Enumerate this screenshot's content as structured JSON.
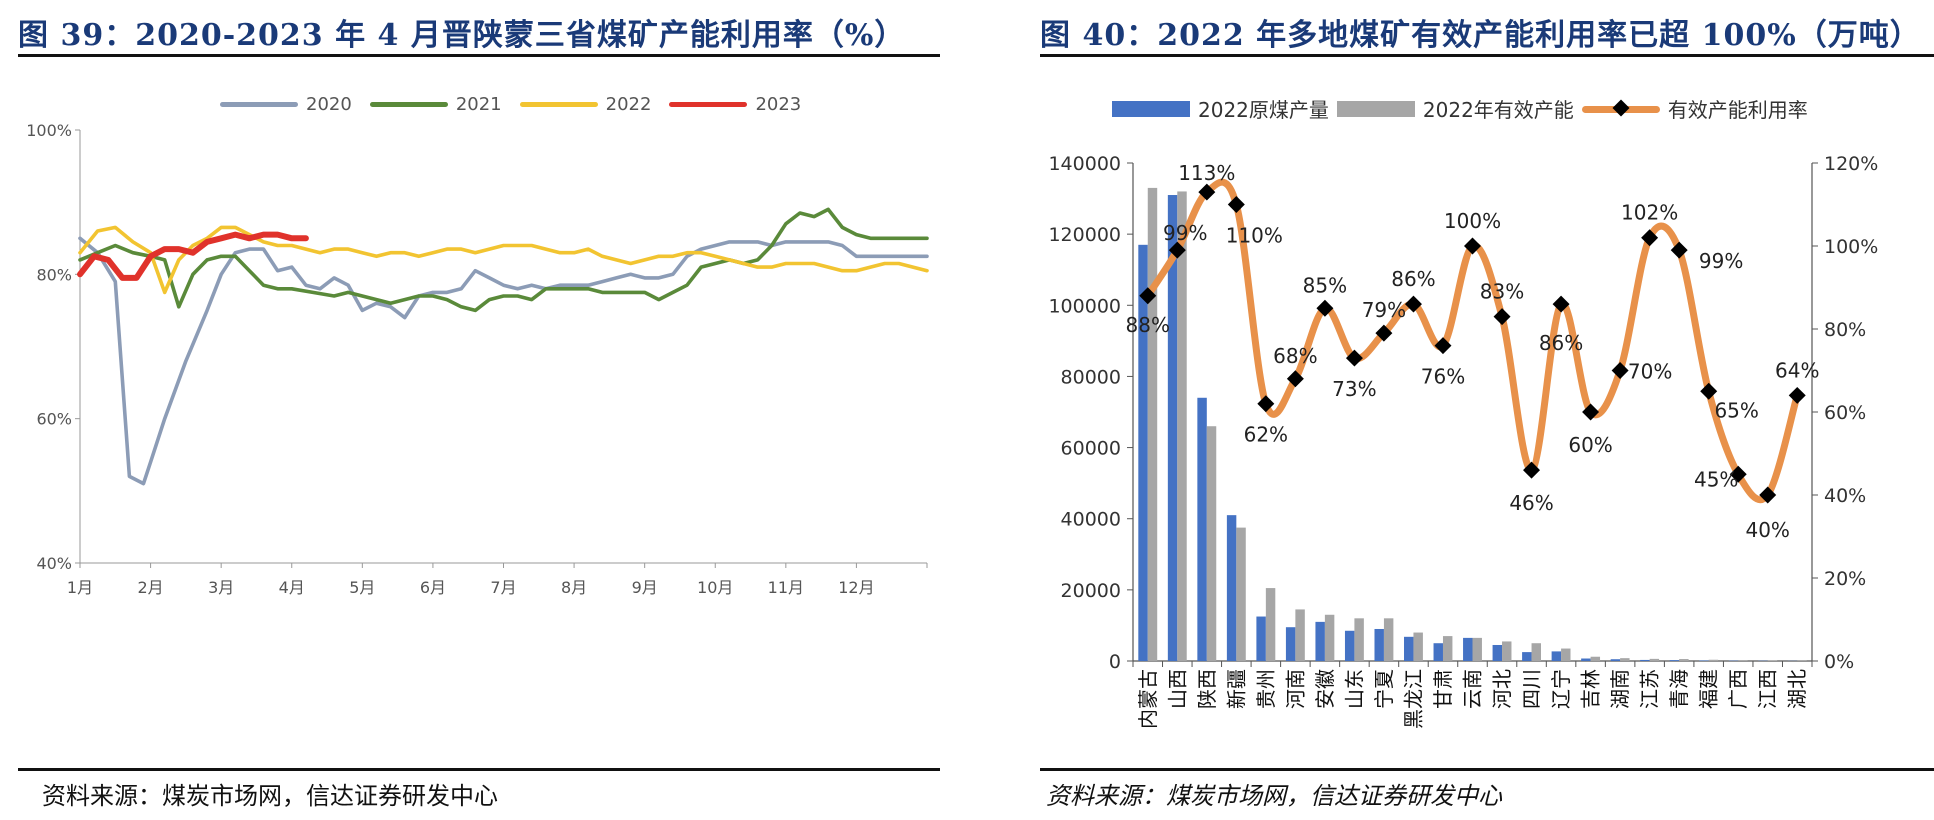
{
  "left": {
    "title": "图 39：2020-2023 年 4 月晋陕蒙三省煤矿产能利用率（%）",
    "source": "资料来源：煤炭市场网，信达证券研发中心"
  },
  "right": {
    "title": "图 40：2022 年多地煤矿有效产能利用率已超 100%（万吨）",
    "source": "资料来源：煤炭市场网，信达证券研发中心"
  },
  "chart_data": [
    {
      "type": "line",
      "title": "2020-2023 年 4 月晋陕蒙三省煤矿产能利用率（%）",
      "x_ticks": [
        "1月",
        "2月",
        "3月",
        "4月",
        "5月",
        "6月",
        "7月",
        "8月",
        "9月",
        "10月",
        "11月",
        "12月"
      ],
      "x_range": [
        1,
        13
      ],
      "y_ticks": [
        "40%",
        "60%",
        "80%",
        "100%"
      ],
      "ylim": [
        40,
        100
      ],
      "legend_position": "top-center",
      "series": [
        {
          "name": "2020",
          "color": "#8c9cb6",
          "x": [
            1,
            1.25,
            1.5,
            1.7,
            1.9,
            2.0,
            2.2,
            2.5,
            2.8,
            3.0,
            3.2,
            3.4,
            3.6,
            3.8,
            4.0,
            4.2,
            4.4,
            4.6,
            4.8,
            5.0,
            5.2,
            5.4,
            5.6,
            5.8,
            6.0,
            6.2,
            6.4,
            6.6,
            6.8,
            7.0,
            7.2,
            7.4,
            7.6,
            7.8,
            8.0,
            8.2,
            8.4,
            8.6,
            8.8,
            9.0,
            9.2,
            9.4,
            9.6,
            9.8,
            10.0,
            10.2,
            10.4,
            10.6,
            10.8,
            11.0,
            11.2,
            11.4,
            11.6,
            11.8,
            12.0,
            12.2,
            12.4,
            12.6,
            12.8,
            13.0
          ],
          "y": [
            85,
            83,
            79,
            52,
            51,
            54,
            60,
            68,
            75,
            80,
            83,
            83.5,
            83.5,
            80.5,
            81,
            78.5,
            78,
            79.5,
            78.5,
            75,
            76,
            75.5,
            74,
            77,
            77.5,
            77.5,
            78,
            80.5,
            79.5,
            78.5,
            78,
            78.5,
            78,
            78.5,
            78.5,
            78.5,
            79,
            79.5,
            80,
            79.5,
            79.5,
            80,
            82.5,
            83.5,
            84,
            84.5,
            84.5,
            84.5,
            84,
            84.5,
            84.5,
            84.5,
            84.5,
            84,
            82.5,
            82.5,
            82.5,
            82.5,
            82.5,
            82.5
          ]
        },
        {
          "name": "2021",
          "color": "#5a8a3a",
          "x": [
            1,
            1.25,
            1.5,
            1.75,
            2.0,
            2.2,
            2.4,
            2.6,
            2.8,
            3.0,
            3.2,
            3.4,
            3.6,
            3.8,
            4.0,
            4.3,
            4.6,
            4.8,
            5.0,
            5.2,
            5.4,
            5.6,
            5.8,
            6.0,
            6.2,
            6.4,
            6.6,
            6.8,
            7.0,
            7.2,
            7.4,
            7.6,
            7.8,
            8.0,
            8.2,
            8.4,
            8.6,
            8.8,
            9.0,
            9.2,
            9.4,
            9.6,
            9.8,
            10.0,
            10.2,
            10.4,
            10.6,
            10.8,
            11.0,
            11.2,
            11.4,
            11.6,
            11.8,
            12.0,
            12.2,
            12.4,
            12.6,
            12.8,
            13.0
          ],
          "y": [
            82,
            83,
            84,
            83,
            82.5,
            82,
            75.5,
            80,
            82,
            82.5,
            82.5,
            80.5,
            78.5,
            78,
            78,
            77.5,
            77,
            77.5,
            77,
            76.5,
            76,
            76.5,
            77,
            77,
            76.5,
            75.5,
            75,
            76.5,
            77,
            77,
            76.5,
            78,
            78,
            78,
            78,
            77.5,
            77.5,
            77.5,
            77.5,
            76.5,
            77.5,
            78.5,
            81,
            81.5,
            82,
            81.5,
            82,
            84,
            87,
            88.5,
            88,
            89,
            86.5,
            85.5,
            85,
            85,
            85,
            85,
            85
          ]
        },
        {
          "name": "2022",
          "color": "#f2c431",
          "x": [
            1,
            1.25,
            1.5,
            1.75,
            2.0,
            2.2,
            2.4,
            2.6,
            2.8,
            3.0,
            3.2,
            3.4,
            3.6,
            3.8,
            4.0,
            4.2,
            4.4,
            4.6,
            4.8,
            5.0,
            5.2,
            5.4,
            5.6,
            5.8,
            6.0,
            6.2,
            6.4,
            6.6,
            6.8,
            7.0,
            7.2,
            7.4,
            7.6,
            7.8,
            8.0,
            8.2,
            8.4,
            8.6,
            8.8,
            9.0,
            9.2,
            9.4,
            9.6,
            9.8,
            10.0,
            10.2,
            10.4,
            10.6,
            10.8,
            11.0,
            11.2,
            11.4,
            11.6,
            11.8,
            12.0,
            12.2,
            12.4,
            12.6,
            12.8,
            13.0
          ],
          "y": [
            83,
            86,
            86.5,
            84.5,
            83,
            77.5,
            82,
            84,
            85,
            86.5,
            86.5,
            85.5,
            84.5,
            84,
            84,
            83.5,
            83,
            83.5,
            83.5,
            83,
            82.5,
            83,
            83,
            82.5,
            83,
            83.5,
            83.5,
            83,
            83.5,
            84,
            84,
            84,
            83.5,
            83,
            83,
            83.5,
            82.5,
            82,
            81.5,
            82,
            82.5,
            82.5,
            83,
            83,
            82.5,
            82,
            81.5,
            81,
            81,
            81.5,
            81.5,
            81.5,
            81,
            80.5,
            80.5,
            81,
            81.5,
            81.5,
            81,
            80.5
          ]
        },
        {
          "name": "2023",
          "color": "#e0322b",
          "x": [
            1,
            1.2,
            1.4,
            1.6,
            1.8,
            2.0,
            2.2,
            2.4,
            2.6,
            2.8,
            3.0,
            3.2,
            3.4,
            3.6,
            3.8,
            4.0,
            4.2
          ],
          "y": [
            80,
            82.5,
            82,
            79.5,
            79.5,
            82.5,
            83.5,
            83.5,
            83,
            84.5,
            85,
            85.5,
            85,
            85.5,
            85.5,
            85,
            85
          ]
        }
      ]
    },
    {
      "type": "bar",
      "title": "2022 年多地煤矿有效产能利用率已超 100%（万吨）",
      "categories": [
        "内蒙古",
        "山西",
        "陕西",
        "新疆",
        "贵州",
        "河南",
        "安徽",
        "山东",
        "宁夏",
        "黑龙江",
        "甘肃",
        "云南",
        "河北",
        "四川",
        "辽宁",
        "吉林",
        "湖南",
        "江苏",
        "青海",
        "福建",
        "广西",
        "江西",
        "湖北"
      ],
      "ylim_left": [
        0,
        140000
      ],
      "y_ticks_left": [
        "0",
        "20000",
        "40000",
        "60000",
        "80000",
        "100000",
        "120000",
        "140000"
      ],
      "ylim_right": [
        0,
        120
      ],
      "y_ticks_right": [
        "0%",
        "20%",
        "40%",
        "60%",
        "80%",
        "100%",
        "120%"
      ],
      "legend_position": "top",
      "series": [
        {
          "name": "2022原煤产量",
          "axis": "left",
          "color": "#4472c4",
          "values": [
            117000,
            131000,
            74000,
            41000,
            12500,
            9500,
            11000,
            8500,
            9000,
            6800,
            5000,
            6500,
            4500,
            2500,
            2700,
            700,
            500,
            300,
            250,
            150,
            100,
            80,
            50
          ]
        },
        {
          "name": "2022年有效产能",
          "axis": "left",
          "color": "#a6a6a6",
          "values": [
            133000,
            132000,
            66000,
            37500,
            20500,
            14500,
            13000,
            12000,
            12000,
            8000,
            7000,
            6500,
            5500,
            5000,
            3500,
            1200,
            800,
            600,
            550,
            350,
            250,
            200,
            80
          ]
        },
        {
          "name": "有效产能利用率",
          "axis": "right",
          "type": "line",
          "color": "#e8914a",
          "marker_color": "#000000",
          "values": [
            88,
            99,
            113,
            110,
            62,
            68,
            85,
            73,
            79,
            86,
            76,
            100,
            83,
            46,
            86,
            60,
            70,
            102,
            99,
            65,
            45,
            40,
            64
          ],
          "labels": [
            "88%",
            "99%",
            "113%",
            "110%",
            "62%",
            "68%",
            "85%",
            "73%",
            "79%",
            "86%",
            "76%",
            "100%",
            "83%",
            "46%",
            "86%",
            "60%",
            "70%",
            "102%",
            "99%",
            "65%",
            "45%",
            "40%",
            "64%"
          ]
        }
      ]
    }
  ]
}
